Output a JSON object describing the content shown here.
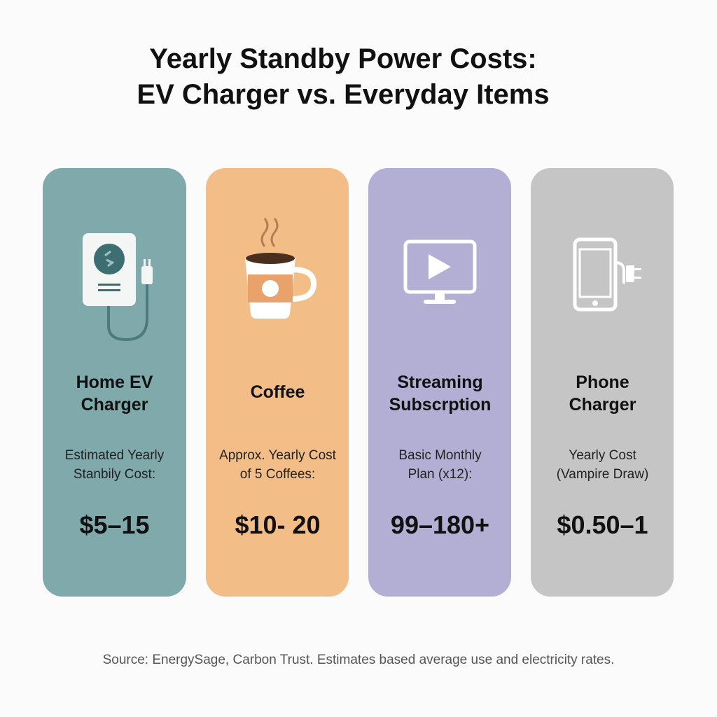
{
  "header": {
    "title": [
      "Yearly Standby Power Costs:",
      "EV Charger vs. Everyday Items"
    ]
  },
  "cards": [
    {
      "name": [
        "Home EV",
        "Charger"
      ],
      "description": [
        "Estimated Yearly",
        "Stanbily Cost:"
      ],
      "value": "$5–15"
    },
    {
      "name": [
        "Coffee"
      ],
      "description": [
        "Approx. Yearly Cost",
        "of 5 Coffees:"
      ],
      "value": "$10- 20"
    },
    {
      "name": [
        "Streaming",
        "Subscrption"
      ],
      "description": [
        "Basic Monthly",
        "Plan (x12):"
      ],
      "value": "99–180+"
    },
    {
      "name": [
        "Phone",
        "Charger"
      ],
      "description": [
        "Yearly Cost",
        "(Vampire Draw)"
      ],
      "value": "$0.50–1"
    }
  ],
  "footer": "Source: EnergySage, Carbon Trust. Estimates based average use and electricity rates."
}
